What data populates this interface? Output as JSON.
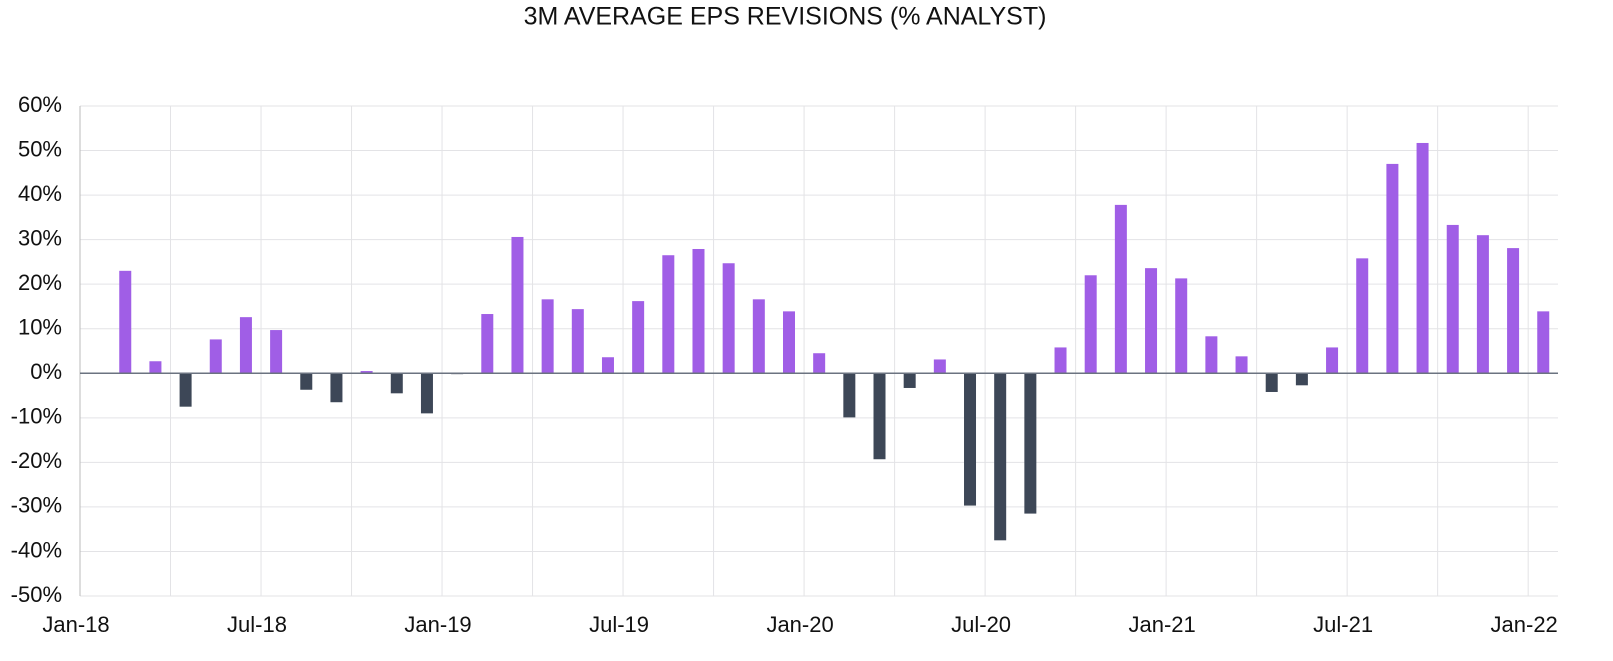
{
  "chart_data": {
    "type": "bar",
    "title": "3M AVERAGE EPS REVISIONS (% ANALYST)",
    "categories": [
      "Jan-18",
      null,
      null,
      null,
      null,
      null,
      "Jul-18",
      null,
      null,
      null,
      null,
      null,
      "Jan-19",
      null,
      null,
      null,
      null,
      null,
      "Jul-19",
      null,
      null,
      null,
      null,
      null,
      "Jan-20",
      null,
      null,
      null,
      null,
      null,
      "Jul-20",
      null,
      null,
      null,
      null,
      null,
      "Jan-21",
      null,
      null,
      null,
      null,
      null,
      "Jul-21",
      null,
      null,
      null,
      null,
      null,
      "Jan-22"
    ],
    "values": [
      null,
      23,
      2.7,
      -7.5,
      7.6,
      12.6,
      9.7,
      -3.7,
      -6.5,
      0.5,
      -4.5,
      -9,
      -0.2,
      13.3,
      30.6,
      16.6,
      14.4,
      3.6,
      16.2,
      26.5,
      27.9,
      24.7,
      16.6,
      13.9,
      4.5,
      -9.9,
      -19.3,
      -3.3,
      3.1,
      -29.7,
      -37.5,
      -31.5,
      5.8,
      22,
      37.8,
      23.6,
      21.3,
      8.3,
      3.8,
      -4.2,
      -2.7,
      5.8,
      25.8,
      47,
      51.7,
      33.3,
      31,
      28.1,
      13.9
    ],
    "positive_color": "#a05ee6",
    "negative_color": "#3d4757",
    "ylim": [
      -50,
      60
    ],
    "yticks": [
      {
        "value": -50,
        "label": "-50%"
      },
      {
        "value": -40,
        "label": "-40%"
      },
      {
        "value": -30,
        "label": "-30%"
      },
      {
        "value": -20,
        "label": "-20%"
      },
      {
        "value": -10,
        "label": "-10%"
      },
      {
        "value": 0,
        "label": "0%"
      },
      {
        "value": 10,
        "label": "10%"
      },
      {
        "value": 20,
        "label": "20%"
      },
      {
        "value": 30,
        "label": "30%"
      },
      {
        "value": 40,
        "label": "40%"
      },
      {
        "value": 50,
        "label": "50%"
      },
      {
        "value": 60,
        "label": "60%"
      }
    ],
    "grid": true
  }
}
